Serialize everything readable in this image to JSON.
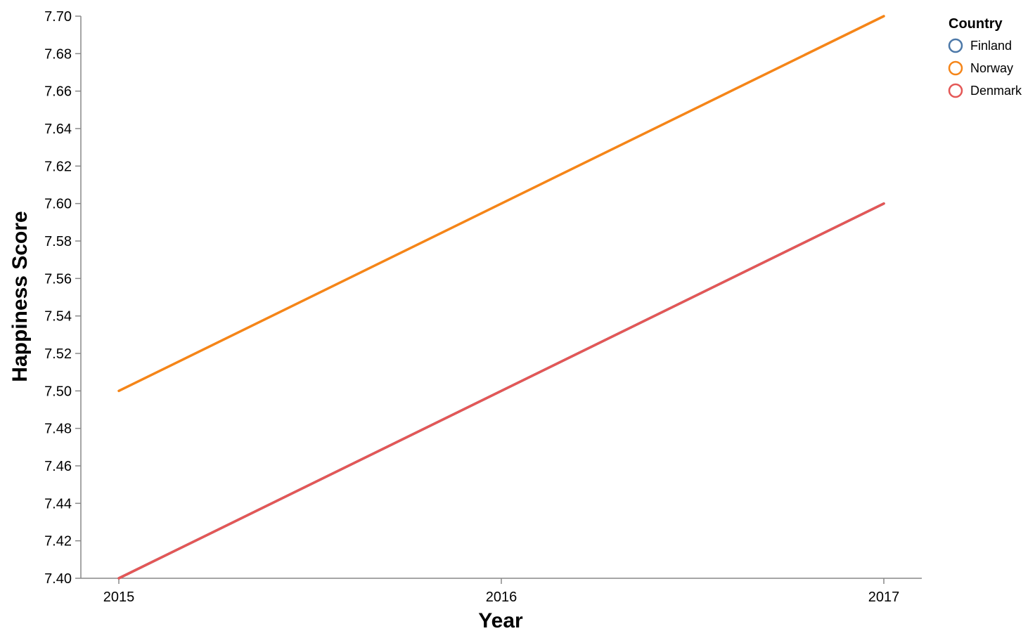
{
  "chart_data": {
    "type": "line",
    "title": "",
    "xlabel": "Year",
    "ylabel": "Happiness Score",
    "x": [
      2015,
      2016,
      2017
    ],
    "x_tick_labels": [
      "2015",
      "2016",
      "2017"
    ],
    "ylim": [
      7.4,
      7.7
    ],
    "y_ticks": [
      "7.40",
      "7.42",
      "7.44",
      "7.46",
      "7.48",
      "7.50",
      "7.52",
      "7.54",
      "7.56",
      "7.58",
      "7.60",
      "7.62",
      "7.64",
      "7.66",
      "7.68",
      "7.70"
    ],
    "grid": false,
    "legend": {
      "title": "Country",
      "placement": "top-right"
    },
    "series": [
      {
        "name": "Finland",
        "values": [
          7.4,
          7.5,
          7.6
        ],
        "color": "#4c78a8"
      },
      {
        "name": "Norway",
        "values": [
          7.5,
          7.6,
          7.7
        ],
        "color": "#f58518"
      },
      {
        "name": "Denmark",
        "values": [
          7.4,
          7.5,
          7.6
        ],
        "color": "#e45756"
      }
    ]
  }
}
